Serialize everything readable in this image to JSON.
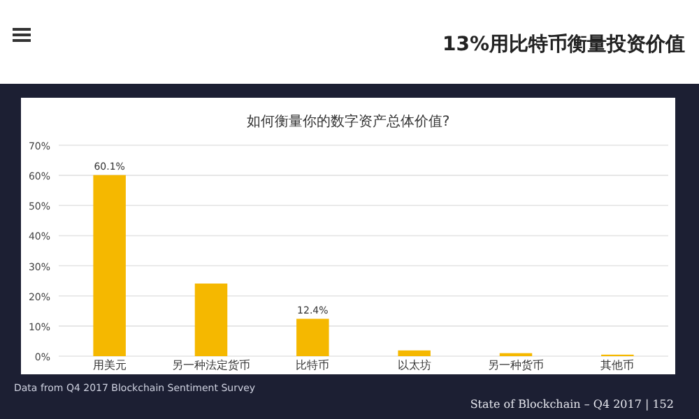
{
  "chart_data": {
    "type": "bar",
    "title": "如何衡量你的数字资产总体价值?",
    "subtitle": "13%用比特币衡量投资价值",
    "categories": [
      "用美元",
      "另一种法定货币",
      "比特币",
      "以太坊",
      "另一种货币",
      "其他币"
    ],
    "values": [
      60.1,
      24.1,
      12.4,
      1.9,
      1.0,
      0.5
    ],
    "value_labels": [
      "60.1%",
      null,
      "12.4%",
      null,
      null,
      null
    ],
    "color": "#f5b800",
    "ylim": [
      0,
      70
    ],
    "yticks": [
      {
        "value": 0,
        "label": "0%"
      },
      {
        "value": 10,
        "label": "10%"
      },
      {
        "value": 20,
        "label": "20%"
      },
      {
        "value": 30,
        "label": "30%"
      },
      {
        "value": 40,
        "label": "40%"
      },
      {
        "value": 50,
        "label": "50%"
      },
      {
        "value": 60,
        "label": "60%"
      },
      {
        "value": 70,
        "label": "70%"
      }
    ],
    "grid": "y",
    "annotations": [
      "Data from Q4 2017 Blockchain Sentiment Survey",
      "State of Blockchain – Q4 2017  |  152"
    ]
  }
}
